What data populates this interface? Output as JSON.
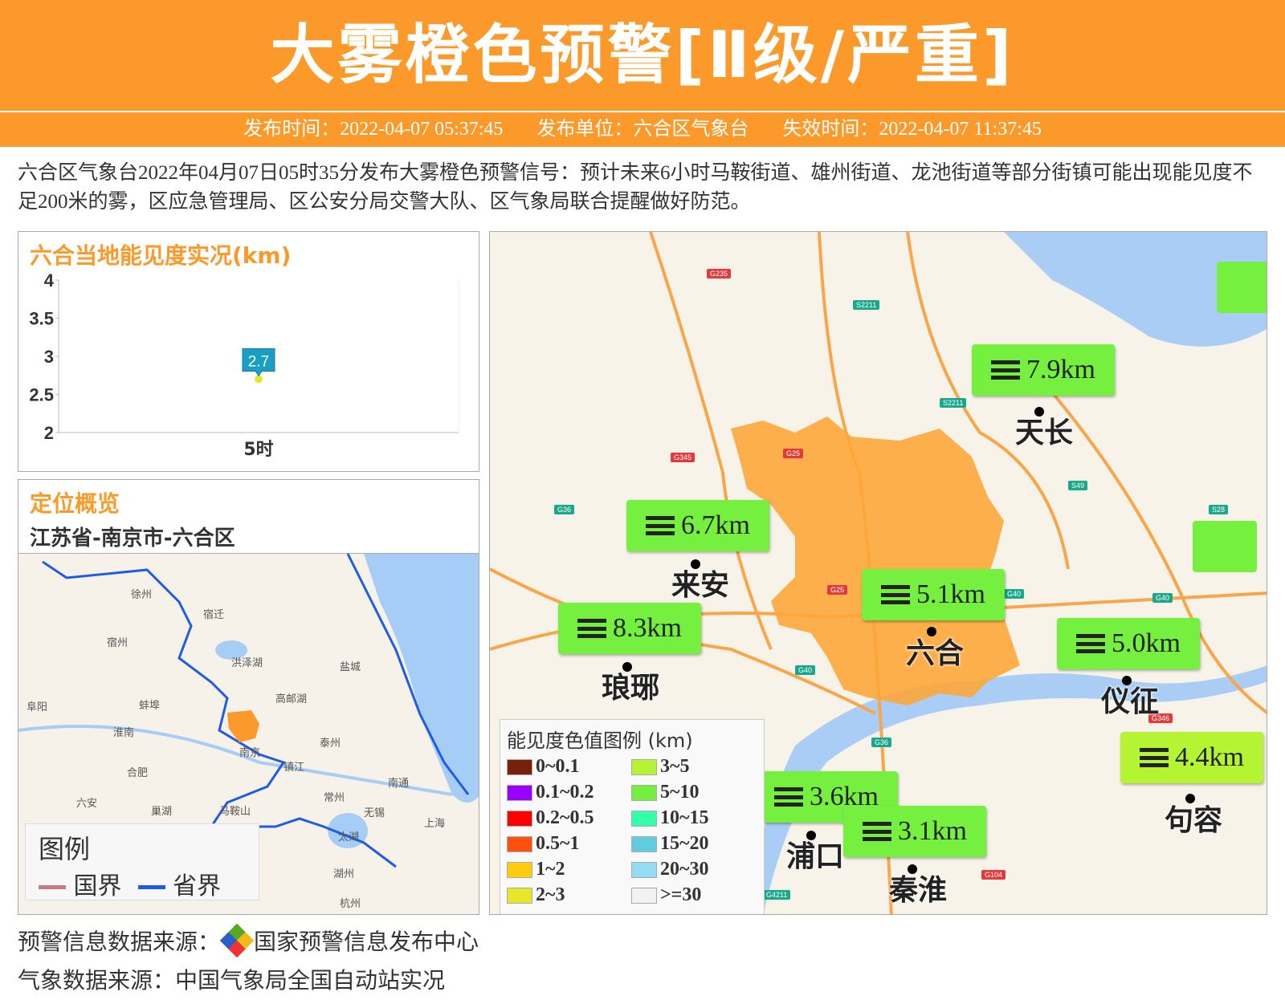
{
  "header": {
    "title": "大雾橙色预警[Ⅱ级/严重]"
  },
  "info": {
    "publish_time": "发布时间：2022-04-07 05:37:45",
    "publisher": "发布单位：六合区气象台",
    "expire_time": "失效时间：2022-04-07 11:37:45"
  },
  "description": "六合区气象台2022年04月07日05时35分发布大雾橙色预警信号：预计未来6小时马鞍街道、雄州街道、龙池街道等部分街镇可能出现能见度不足200米的雾，区应急管理局、区公安分局交警大队、区气象局联合提醒做好防范。",
  "chart_panel": {
    "title": "六合当地能见度实况(km)"
  },
  "chart_data": {
    "type": "scatter",
    "title": "六合当地能见度实况(km)",
    "categories": [
      "5时"
    ],
    "values": [
      2.7
    ],
    "data_labels": [
      "2.7"
    ],
    "ylim": [
      2,
      4
    ],
    "yticks": [
      "4",
      "3.5",
      "3",
      "2.5",
      "2"
    ],
    "point_color": "#e6e62a",
    "label_color": "#1a9fc4"
  },
  "location": {
    "title": "定位概览",
    "path": "江苏省-南京市-六合区",
    "legend_title": "图例",
    "legend_items": [
      {
        "label": "国界",
        "color": "#c87a86"
      },
      {
        "label": "省界",
        "color": "#1e5ce6"
      }
    ],
    "cities": [
      "宿迁",
      "宿州",
      "徐州",
      "洪泽湖",
      "盐城",
      "蚌埠",
      "淮南",
      "高邮湖",
      "泰州",
      "南京",
      "镇江",
      "合肥",
      "常州",
      "南通",
      "六安",
      "巢湖",
      "马鞍山",
      "无锡",
      "太湖",
      "上海",
      "湖州",
      "杭州",
      "阜阳"
    ]
  },
  "map": {
    "stations": [
      {
        "name": "天长",
        "vis": "7.9km"
      },
      {
        "name": "来安",
        "vis": "6.7km"
      },
      {
        "name": "六合",
        "vis": "5.1km"
      },
      {
        "name": "琅琊",
        "vis": "8.3km"
      },
      {
        "name": "仪征",
        "vis": "5.0km"
      },
      {
        "name": "句容",
        "vis": "4.4km"
      },
      {
        "name": "浦口",
        "vis": "3.6km"
      },
      {
        "name": "秦淮",
        "vis": "3.1km"
      }
    ],
    "road_labels": [
      "G235",
      "S2211",
      "S2211",
      "G345",
      "G25",
      "G36",
      "S49",
      "S28",
      "G40",
      "G40",
      "G40",
      "G25",
      "G36",
      "G346",
      "G4211",
      "G104"
    ],
    "legend": {
      "title": "能见度色值图例 (km)",
      "items": [
        {
          "label": "0~0.1",
          "color": "#76220a"
        },
        {
          "label": "3~5",
          "color": "#b4f432"
        },
        {
          "label": "0.1~0.2",
          "color": "#9900ff"
        },
        {
          "label": "5~10",
          "color": "#75f03e"
        },
        {
          "label": "0.2~0.5",
          "color": "#ff0000"
        },
        {
          "label": "10~15",
          "color": "#33ffaa"
        },
        {
          "label": "0.5~1",
          "color": "#ff5010"
        },
        {
          "label": "15~20",
          "color": "#5fcce0"
        },
        {
          "label": "1~2",
          "color": "#ffcc10"
        },
        {
          "label": "20~30",
          "color": "#94dcf4"
        },
        {
          "label": "2~3",
          "color": "#e6e62a"
        },
        {
          "label": ">=30",
          "color": "#f2f2f2"
        }
      ]
    }
  },
  "footer": {
    "warning_source": "预警信息数据来源：",
    "warning_org": "国家预警信息发布中心",
    "weather_source": "气象数据来源：中国气象局全国自动站实况"
  }
}
